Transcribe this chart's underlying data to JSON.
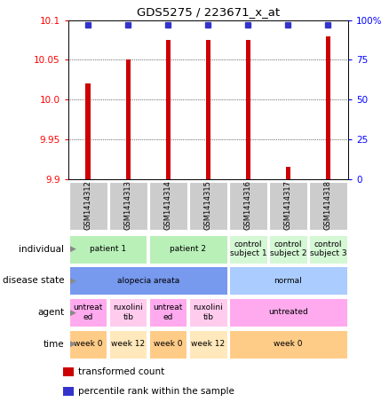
{
  "title": "GDS5275 / 223671_x_at",
  "samples": [
    "GSM1414312",
    "GSM1414313",
    "GSM1414314",
    "GSM1414315",
    "GSM1414316",
    "GSM1414317",
    "GSM1414318"
  ],
  "transformed_count": [
    10.02,
    10.05,
    10.075,
    10.075,
    10.075,
    9.915,
    10.08
  ],
  "percentile_rank": [
    97,
    97,
    97,
    97,
    97,
    97,
    97
  ],
  "ylim_left": [
    9.9,
    10.1
  ],
  "yticks_left": [
    9.9,
    9.95,
    10.0,
    10.05,
    10.1
  ],
  "yticks_right": [
    0,
    25,
    50,
    75,
    100
  ],
  "bar_color": "#cc0000",
  "dot_color": "#3333cc",
  "rows": [
    {
      "label": "individual",
      "cells": [
        {
          "text": "patient 1",
          "span": 2,
          "color": "#b8f0b8"
        },
        {
          "text": "patient 2",
          "span": 2,
          "color": "#b8f0b8"
        },
        {
          "text": "control\nsubject 1",
          "span": 1,
          "color": "#d4f7d4"
        },
        {
          "text": "control\nsubject 2",
          "span": 1,
          "color": "#d4f7d4"
        },
        {
          "text": "control\nsubject 3",
          "span": 1,
          "color": "#d4f7d4"
        }
      ]
    },
    {
      "label": "disease state",
      "cells": [
        {
          "text": "alopecia areata",
          "span": 4,
          "color": "#7799ee"
        },
        {
          "text": "normal",
          "span": 3,
          "color": "#aaccff"
        }
      ]
    },
    {
      "label": "agent",
      "cells": [
        {
          "text": "untreat\ned",
          "span": 1,
          "color": "#ffaaee"
        },
        {
          "text": "ruxolini\ntib",
          "span": 1,
          "color": "#ffccee"
        },
        {
          "text": "untreat\ned",
          "span": 1,
          "color": "#ffaaee"
        },
        {
          "text": "ruxolini\ntib",
          "span": 1,
          "color": "#ffccee"
        },
        {
          "text": "untreated",
          "span": 3,
          "color": "#ffaaee"
        }
      ]
    },
    {
      "label": "time",
      "cells": [
        {
          "text": "week 0",
          "span": 1,
          "color": "#ffcc88"
        },
        {
          "text": "week 12",
          "span": 1,
          "color": "#ffe8bb"
        },
        {
          "text": "week 0",
          "span": 1,
          "color": "#ffcc88"
        },
        {
          "text": "week 12",
          "span": 1,
          "color": "#ffe8bb"
        },
        {
          "text": "week 0",
          "span": 3,
          "color": "#ffcc88"
        }
      ]
    }
  ],
  "legend": [
    {
      "color": "#cc0000",
      "label": "transformed count"
    },
    {
      "color": "#3333cc",
      "label": "percentile rank within the sample"
    }
  ],
  "gsm_bg": "#cccccc",
  "bar_width": 0.12
}
